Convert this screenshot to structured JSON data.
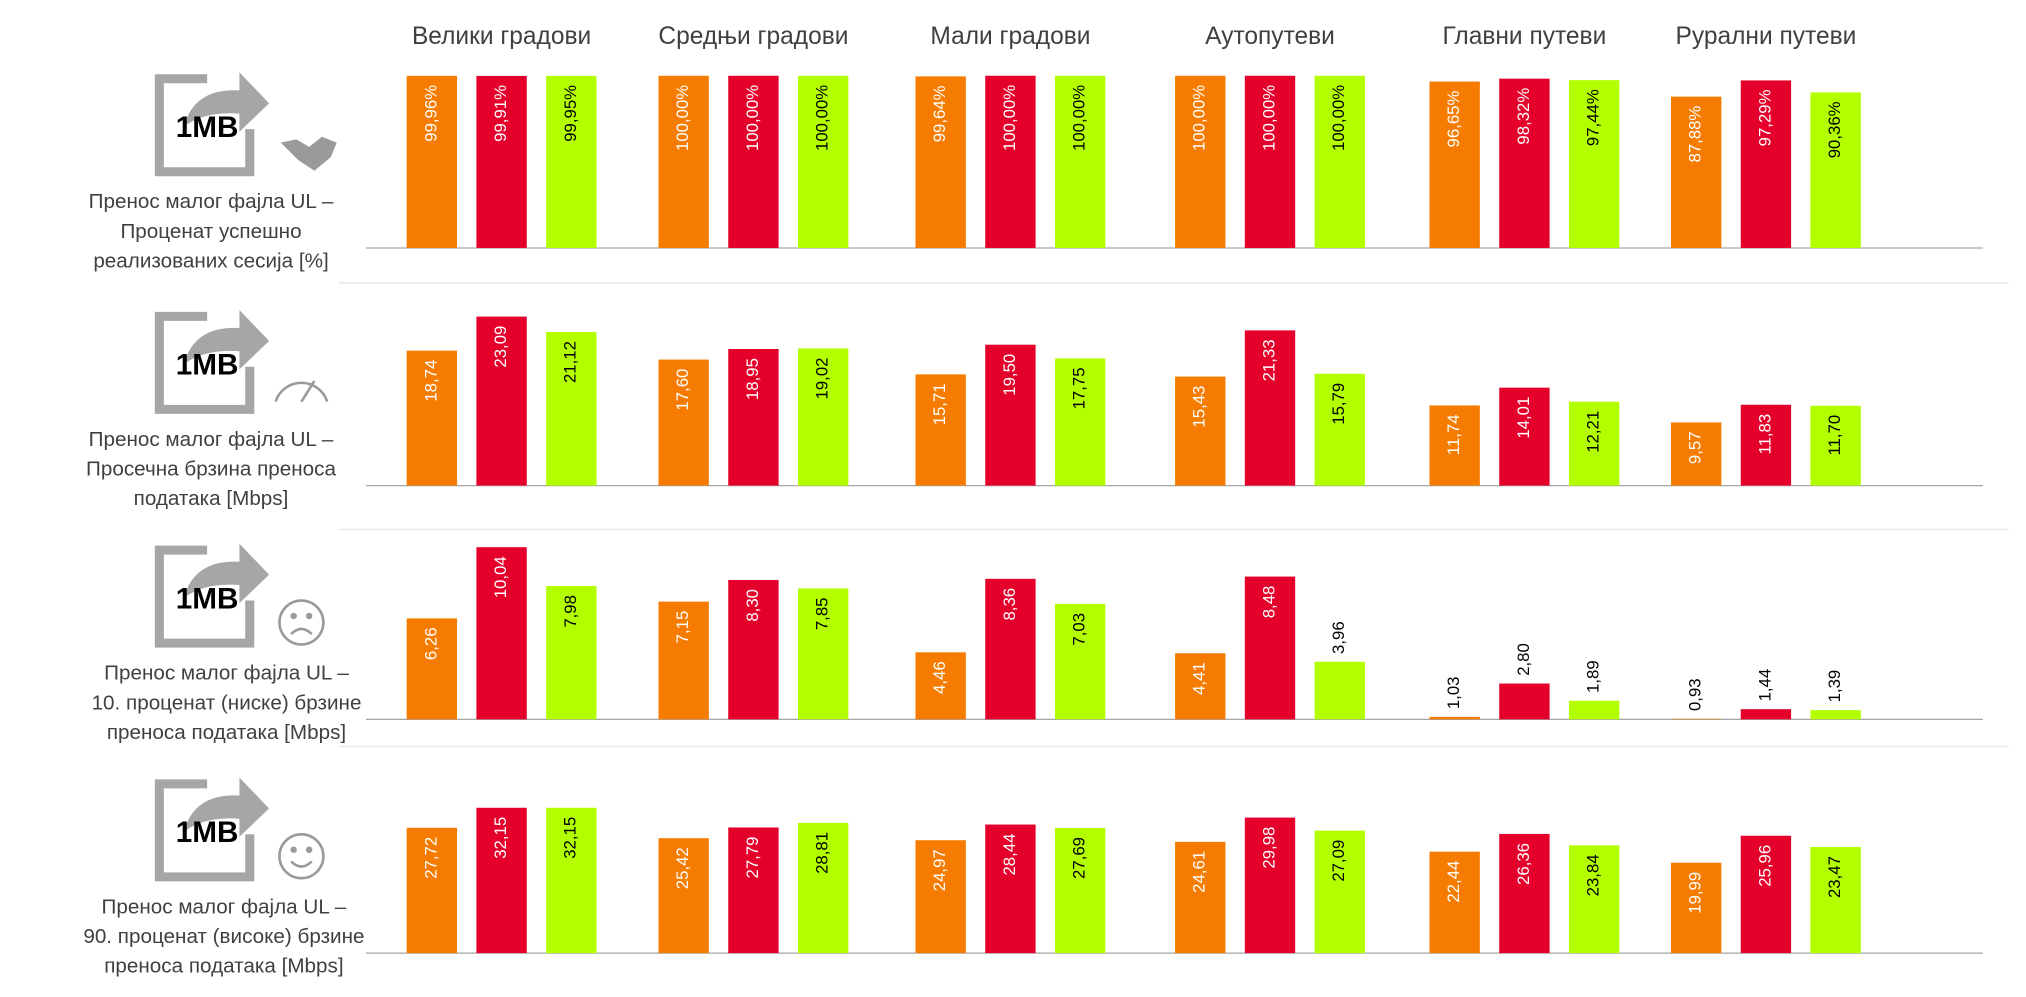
{
  "chart_data": [
    {
      "type": "bar",
      "icon_label": "1MB",
      "icon": "handshake",
      "title": [
        "Пренос малог фајла UL –",
        "Проценат успешно",
        "реализованих сесија [%]"
      ],
      "categories": [
        "Велики градови",
        "Средњи градови",
        "Мали градови",
        "Аутопутеви",
        "Главни путеви",
        "Рурални путеви"
      ],
      "ylim": [
        0,
        105
      ],
      "series": [
        {
          "color": "#f57c00",
          "label_color": "#ffffff",
          "values": [
            99.96,
            100,
            99.64,
            100,
            96.65,
            87.88
          ],
          "value_labels": [
            "99,96%",
            "100,00%",
            "99,64%",
            "100,00%",
            "96,65%",
            "87,88%"
          ]
        },
        {
          "color": "#e4002b",
          "label_color": "#ffffff",
          "values": [
            99.91,
            100,
            100,
            100,
            98.32,
            97.29
          ],
          "value_labels": [
            "99,91%",
            "100,00%",
            "100,00%",
            "100,00%",
            "98,32%",
            "97,29%"
          ]
        },
        {
          "color": "#b3ff00",
          "label_color": "#000000",
          "values": [
            99.95,
            100,
            100,
            100,
            97.44,
            90.36
          ],
          "value_labels": [
            "99,95%",
            "100,00%",
            "100,00%",
            "100,00%",
            "97,44%",
            "90,36%"
          ]
        }
      ]
    },
    {
      "type": "bar",
      "icon_label": "1MB",
      "icon": "gauge",
      "title": [
        "Пренос малог фајла UL –",
        "Просечна брзина преноса",
        "података [Mbps]"
      ],
      "ylim": [
        1.5,
        24.6
      ],
      "series": [
        {
          "color": "#f57c00",
          "label_color": "#ffffff",
          "values": [
            18.74,
            17.6,
            15.71,
            15.43,
            11.74,
            9.57
          ],
          "value_labels": [
            "18,74",
            "17,60",
            "15,71",
            "15,43",
            "11,74",
            "9,57"
          ]
        },
        {
          "color": "#e4002b",
          "label_color": "#ffffff",
          "values": [
            23.09,
            18.95,
            19.5,
            21.33,
            14.01,
            11.83
          ],
          "value_labels": [
            "23,09",
            "18,95",
            "19,50",
            "21,33",
            "14,01",
            "11,83"
          ]
        },
        {
          "color": "#b3ff00",
          "label_color": "#000000",
          "values": [
            21.12,
            19.02,
            17.75,
            15.79,
            12.21,
            11.7
          ],
          "value_labels": [
            "21,12",
            "19,02",
            "17,75",
            "15,79",
            "12,21",
            "11,70"
          ]
        }
      ]
    },
    {
      "type": "bar",
      "icon_label": "1MB",
      "icon": "frown",
      "title": [
        "Пренос малог фајла UL –",
        "10. проценат (ниске) брзине",
        "преноса података [Mbps]"
      ],
      "ylim": [
        0.9,
        10.5
      ],
      "series": [
        {
          "color": "#f57c00",
          "label_color": "#ffffff",
          "values": [
            6.26,
            7.15,
            4.46,
            4.41,
            1.03,
            0.93
          ],
          "value_labels": [
            "6,26",
            "7,15",
            "4,46",
            "4,41",
            "1,03",
            "0,93"
          ]
        },
        {
          "color": "#e4002b",
          "label_color": "#ffffff",
          "values": [
            10.04,
            8.3,
            8.36,
            8.48,
            2.8,
            1.44
          ],
          "value_labels": [
            "10,04",
            "8,30",
            "8,36",
            "8,48",
            "2,80",
            "1,44"
          ]
        },
        {
          "color": "#b3ff00",
          "label_color": "#000000",
          "values": [
            7.98,
            7.85,
            7.03,
            3.96,
            1.89,
            1.39
          ],
          "value_labels": [
            "7,98",
            "7,85",
            "7,03",
            "3,96",
            "1,89",
            "1,39"
          ]
        }
      ]
    },
    {
      "type": "bar",
      "icon_label": "1MB",
      "icon": "smile",
      "title": [
        "Пренос малог фајла UL –",
        "90. проценат (високе) брзине",
        "преноса података [Mbps]"
      ],
      "ylim": [
        0,
        40
      ],
      "series": [
        {
          "color": "#f57c00",
          "label_color": "#ffffff",
          "values": [
            27.72,
            25.42,
            24.97,
            24.61,
            22.44,
            19.99
          ],
          "value_labels": [
            "27,72",
            "25,42",
            "24,97",
            "24,61",
            "22,44",
            "19,99"
          ]
        },
        {
          "color": "#e4002b",
          "label_color": "#ffffff",
          "values": [
            32.15,
            27.79,
            28.44,
            29.98,
            26.36,
            25.96
          ],
          "value_labels": [
            "32,15",
            "27,79",
            "28,44",
            "29,98",
            "26,36",
            "25,96"
          ]
        },
        {
          "color": "#b3ff00",
          "label_color": "#000000",
          "values": [
            32.15,
            28.81,
            27.69,
            27.09,
            23.84,
            23.47
          ],
          "value_labels": [
            "32,15",
            "28,81",
            "27,69",
            "27,09",
            "23,84",
            "23,47"
          ]
        }
      ]
    }
  ]
}
